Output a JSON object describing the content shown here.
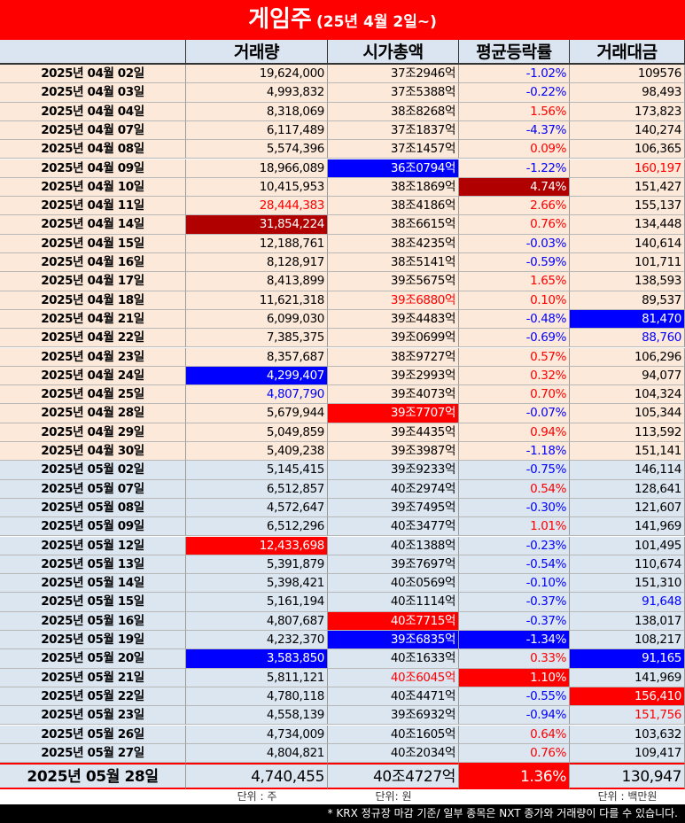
{
  "header": {
    "title": "게임주",
    "subtitle": "(25년 4월 2일~)"
  },
  "table": {
    "columns": [
      "",
      "거래량",
      "시가총액",
      "평균등락률",
      "거래대금"
    ],
    "rows": [
      [
        "2025년 04월 02일",
        "19,624,000",
        "37조2946억",
        "-1.02%",
        "109576"
      ],
      [
        "2025년 04월 03일",
        "4,993,832",
        "37조5388억",
        "-0.22%",
        "98,493"
      ],
      [
        "2025년 04월 04일",
        "8,318,069",
        "38조8268억",
        "1.56%",
        "173,823"
      ],
      [
        "2025년 04월 07일",
        "6,117,489",
        "37조1837억",
        "-4.37%",
        "140,274"
      ],
      [
        "2025년 04월 08일",
        "5,574,396",
        "37조1457억",
        "0.09%",
        "106,365"
      ],
      [
        "2025년 04월 09일",
        "18,966,089",
        "36조0794억",
        "-1.22%",
        "160,197"
      ],
      [
        "2025년 04월 10일",
        "10,415,953",
        "38조1869억",
        "4.74%",
        "151,427"
      ],
      [
        "2025년 04월 11일",
        "28,444,383",
        "38조4186억",
        "2.66%",
        "155,137"
      ],
      [
        "2025년 04월 14일",
        "31,854,224",
        "38조6615억",
        "0.76%",
        "134,448"
      ],
      [
        "2025년 04월 15일",
        "12,188,761",
        "38조4235억",
        "-0.03%",
        "140,614"
      ],
      [
        "2025년 04월 16일",
        "8,128,917",
        "38조5141억",
        "-0.59%",
        "101,711"
      ],
      [
        "2025년 04월 17일",
        "8,413,899",
        "39조5675억",
        "1.65%",
        "138,593"
      ],
      [
        "2025년 04월 18일",
        "11,621,318",
        "39조6880억",
        "0.10%",
        "89,537"
      ],
      [
        "2025년 04월 21일",
        "6,099,030",
        "39조4483억",
        "-0.48%",
        "81,470"
      ],
      [
        "2025년 04월 22일",
        "7,385,375",
        "39조0699억",
        "-0.69%",
        "88,760"
      ],
      [
        "2025년 04월 23일",
        "8,357,687",
        "38조9727억",
        "0.57%",
        "106,296"
      ],
      [
        "2025년 04월 24일",
        "4,299,407",
        "39조2993억",
        "0.32%",
        "94,077"
      ],
      [
        "2025년 04월 25일",
        "4,807,790",
        "39조4073억",
        "0.70%",
        "104,324"
      ],
      [
        "2025년 04월 28일",
        "5,679,944",
        "39조7707억",
        "-0.07%",
        "105,344"
      ],
      [
        "2025년 04월 29일",
        "5,049,859",
        "39조4435억",
        "0.94%",
        "113,592"
      ],
      [
        "2025년 04월 30일",
        "5,409,238",
        "39조3987억",
        "-1.18%",
        "151,141"
      ],
      [
        "2025년 05월 02일",
        "5,145,415",
        "39조9233억",
        "-0.75%",
        "146,114"
      ],
      [
        "2025년 05월 07일",
        "6,512,857",
        "40조2974억",
        "0.54%",
        "128,641"
      ],
      [
        "2025년 05월 08일",
        "4,572,647",
        "39조7495억",
        "-0.30%",
        "121,607"
      ],
      [
        "2025년 05월 09일",
        "6,512,296",
        "40조3477억",
        "1.01%",
        "141,969"
      ],
      [
        "2025년 05월 12일",
        "12,433,698",
        "40조1388억",
        "-0.23%",
        "101,495"
      ],
      [
        "2025년 05월 13일",
        "5,391,879",
        "39조7697억",
        "-0.54%",
        "110,674"
      ],
      [
        "2025년 05월 14일",
        "5,398,421",
        "40조0569억",
        "-0.10%",
        "151,310"
      ],
      [
        "2025년 05월 15일",
        "5,161,194",
        "40조1114억",
        "-0.37%",
        "91,648"
      ],
      [
        "2025년 05월 16일",
        "4,807,687",
        "40조7715억",
        "-0.37%",
        "138,017"
      ],
      [
        "2025년 05월 19일",
        "4,232,370",
        "39조6835억",
        "-1.34%",
        "108,217"
      ],
      [
        "2025년 05월 20일",
        "3,583,850",
        "40조1633억",
        "0.33%",
        "91,165"
      ],
      [
        "2025년 05월 21일",
        "5,811,121",
        "40조6045억",
        "1.10%",
        "141,969"
      ],
      [
        "2025년 05월 22일",
        "4,780,118",
        "40조4471억",
        "-0.55%",
        "156,410"
      ],
      [
        "2025년 05월 23일",
        "4,558,139",
        "39조6932억",
        "-0.94%",
        "151,756"
      ],
      [
        "2025년 05월 26일",
        "4,734,009",
        "40조1605억",
        "0.64%",
        "103,632"
      ],
      [
        "2025년 05월 27일",
        "4,804,821",
        "40조2034억",
        "0.76%",
        "109,417"
      ]
    ],
    "last_row": [
      "2025년 05월 28일",
      "4,740,455",
      "40조4727억",
      "1.36%",
      "130,947"
    ],
    "highlights": [
      {
        "row": 5,
        "col": 2,
        "fill": "#0000ff"
      },
      {
        "row": 5,
        "col": 4,
        "text": "#ff0000"
      },
      {
        "row": 6,
        "col": 3,
        "fill": "#b00000"
      },
      {
        "row": 7,
        "col": 1,
        "text": "#ff0000"
      },
      {
        "row": 8,
        "col": 1,
        "fill": "#b00000"
      },
      {
        "row": 12,
        "col": 2,
        "text": "#ff0000"
      },
      {
        "row": 13,
        "col": 4,
        "fill": "#0000ff"
      },
      {
        "row": 14,
        "col": 4,
        "text": "#0000ff"
      },
      {
        "row": 16,
        "col": 1,
        "fill": "#0000ff"
      },
      {
        "row": 17,
        "col": 1,
        "text": "#0000ff"
      },
      {
        "row": 18,
        "col": 2,
        "fill": "#ff0000"
      },
      {
        "row": 25,
        "col": 1,
        "fill": "#ff0000"
      },
      {
        "row": 28,
        "col": 4,
        "text": "#0000ff"
      },
      {
        "row": 29,
        "col": 2,
        "fill": "#ff0000"
      },
      {
        "row": 30,
        "col": 2,
        "fill": "#0000ff"
      },
      {
        "row": 30,
        "col": 3,
        "fill": "#0000ff"
      },
      {
        "row": 31,
        "col": 1,
        "fill": "#0000ff"
      },
      {
        "row": 31,
        "col": 4,
        "fill": "#0000ff"
      },
      {
        "row": 32,
        "col": 2,
        "text": "#ff0000"
      },
      {
        "row": 32,
        "col": 3,
        "fill": "#ff0000"
      },
      {
        "row": 33,
        "col": 4,
        "fill": "#ff0000"
      },
      {
        "row": 34,
        "col": 4,
        "text": "#ff0000"
      }
    ],
    "last_highlights": [
      {
        "col": 3,
        "fill": "#ff0000"
      }
    ]
  },
  "units": [
    "단위 : 주",
    "단위: 원",
    "단위 : 백만원"
  ],
  "footer": "* KRX 정규장 마감 기준/ 일부 종목은 NXT 종가와 거래량이 다를 수 있습니다."
}
